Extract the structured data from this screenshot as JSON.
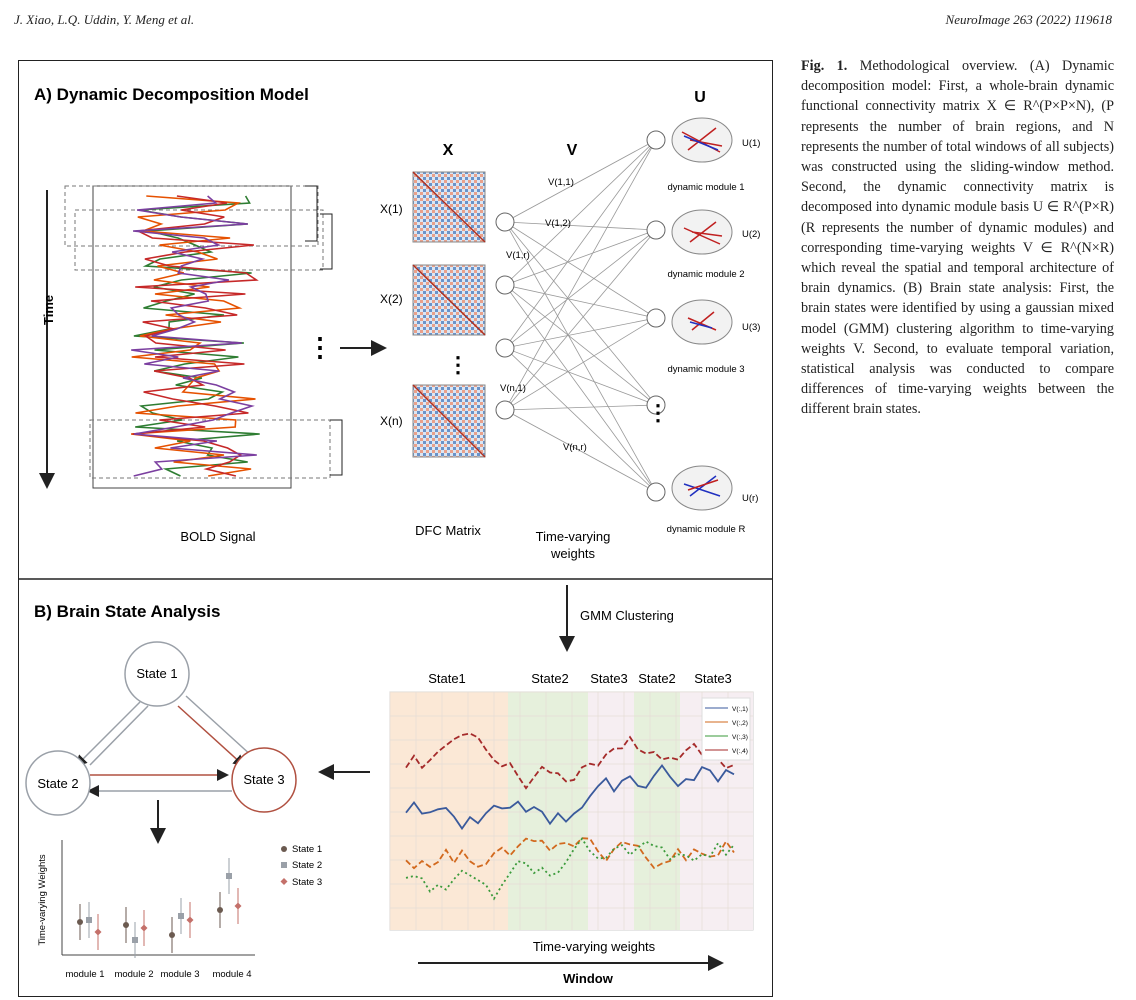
{
  "header": {
    "authors": "J. Xiao, L.Q. Uddin, Y. Meng et al.",
    "journal": "NeuroImage 263 (2022) 119618"
  },
  "figure": {
    "panel_a": {
      "title": "A) Dynamic Decomposition Model",
      "time_label": "Time",
      "bold_label": "BOLD Signal",
      "dfc_label": "DFC Matrix",
      "weights_label_1": "Time-varying",
      "weights_label_2": "weights",
      "col_x": "X",
      "col_v": "V",
      "col_u": "U",
      "x_labels": [
        "X(1)",
        "X(2)",
        "X(n)"
      ],
      "v_labels": [
        "V(1,1)",
        "V(1,2)",
        "V(1,r)",
        "V(n,1)",
        "V(n,r)"
      ],
      "u_labels": [
        "U(1)",
        "U(2)",
        "U(3)",
        "U(r)"
      ],
      "module_labels": [
        "dynamic module 1",
        "dynamic module 2",
        "dynamic module 3",
        "dynamic module R"
      ],
      "ellipsis": "⋮"
    },
    "gmm_label": "GMM Clustering",
    "panel_b": {
      "title": "B) Brain State Analysis",
      "states": [
        "State 1",
        "State 2",
        "State 3"
      ],
      "state_bands": [
        "State1",
        "State2",
        "State3",
        "State2",
        "State3"
      ],
      "ts_legend": [
        "V(:,1)",
        "V(:,2)",
        "V(:,3)",
        "V(:,4)"
      ],
      "ts_title": "Time-varying weights",
      "window_label": "Window",
      "plot_ylabel": "Time-varying Weights",
      "plot_legend": [
        "State 1",
        "State 2",
        "State 3"
      ],
      "plot_modules": [
        "module 1",
        "module 2",
        "module 3",
        "module 4"
      ]
    },
    "colors": {
      "state1": "#6b5a50",
      "state2": "#9aa0a8",
      "state3": "#c4706a",
      "blue": "#3a5a9c",
      "orange": "#d2691e",
      "green": "#3a9a3a",
      "red": "#a52a2a"
    }
  },
  "caption": {
    "label": "Fig. 1.",
    "text": "Methodological overview. (A) Dynamic decomposition model: First, a whole-brain dynamic functional connectivity matrix X ∈ R^(P×P×N), (P represents the number of brain regions, and N represents the number of total windows of all subjects) was constructed using the sliding-window method. Second, the dynamic connectivity matrix is decomposed into dynamic module basis U ∈ R^(P×R) (R represents the number of dynamic modules) and corresponding time-varying weights V ∈ R^(N×R) which reveal the spatial and temporal architecture of brain dynamics. (B) Brain state analysis: First, the brain states were identified by using a gaussian mixed model (GMM) clustering algorithm to time-varying weights V. Second, to evaluate temporal variation, statistical analysis was conducted to compare differences of time-varying weights between the different brain states."
  }
}
